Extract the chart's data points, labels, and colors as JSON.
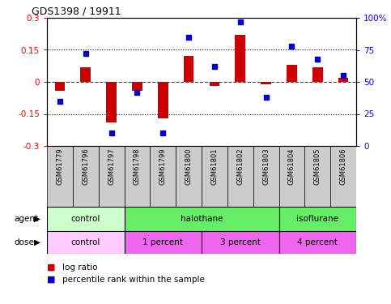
{
  "title": "GDS1398 / 19911",
  "samples": [
    "GSM61779",
    "GSM61796",
    "GSM61797",
    "GSM61798",
    "GSM61799",
    "GSM61800",
    "GSM61801",
    "GSM61802",
    "GSM61803",
    "GSM61804",
    "GSM61805",
    "GSM61806"
  ],
  "log_ratio": [
    -0.04,
    0.07,
    -0.19,
    -0.04,
    -0.17,
    0.12,
    -0.02,
    0.22,
    -0.01,
    0.08,
    0.07,
    0.02
  ],
  "percentile": [
    35,
    72,
    10,
    42,
    10,
    85,
    62,
    97,
    38,
    78,
    68,
    55
  ],
  "bar_color": "#cc0000",
  "dot_color": "#0000cc",
  "left_ylim": [
    -0.3,
    0.3
  ],
  "right_ylim": [
    0,
    100
  ],
  "left_yticks": [
    -0.3,
    -0.15,
    0,
    0.15,
    0.3
  ],
  "left_yticklabels": [
    "-0.3",
    "-0.15",
    "0",
    "0.15",
    "0.3"
  ],
  "right_yticks": [
    0,
    25,
    50,
    75,
    100
  ],
  "right_yticklabels": [
    "0",
    "25",
    "50",
    "75",
    "100%"
  ],
  "hline_color": "#cc0000",
  "dotted_line_color": "#000000",
  "agent_groups": [
    {
      "label": "control",
      "start": 0,
      "end": 3,
      "color": "#ccffcc"
    },
    {
      "label": "halothane",
      "start": 3,
      "end": 9,
      "color": "#66ee66"
    },
    {
      "label": "isoflurane",
      "start": 9,
      "end": 12,
      "color": "#66ee66"
    }
  ],
  "dose_groups": [
    {
      "label": "control",
      "start": 0,
      "end": 3,
      "color": "#ffccff"
    },
    {
      "label": "1 percent",
      "start": 3,
      "end": 6,
      "color": "#ee66ee"
    },
    {
      "label": "3 percent",
      "start": 6,
      "end": 9,
      "color": "#ee66ee"
    },
    {
      "label": "4 percent",
      "start": 9,
      "end": 12,
      "color": "#ee66ee"
    }
  ],
  "sample_box_color": "#cccccc",
  "bg_color": "#ffffff",
  "bar_width": 0.4,
  "dot_size": 5
}
